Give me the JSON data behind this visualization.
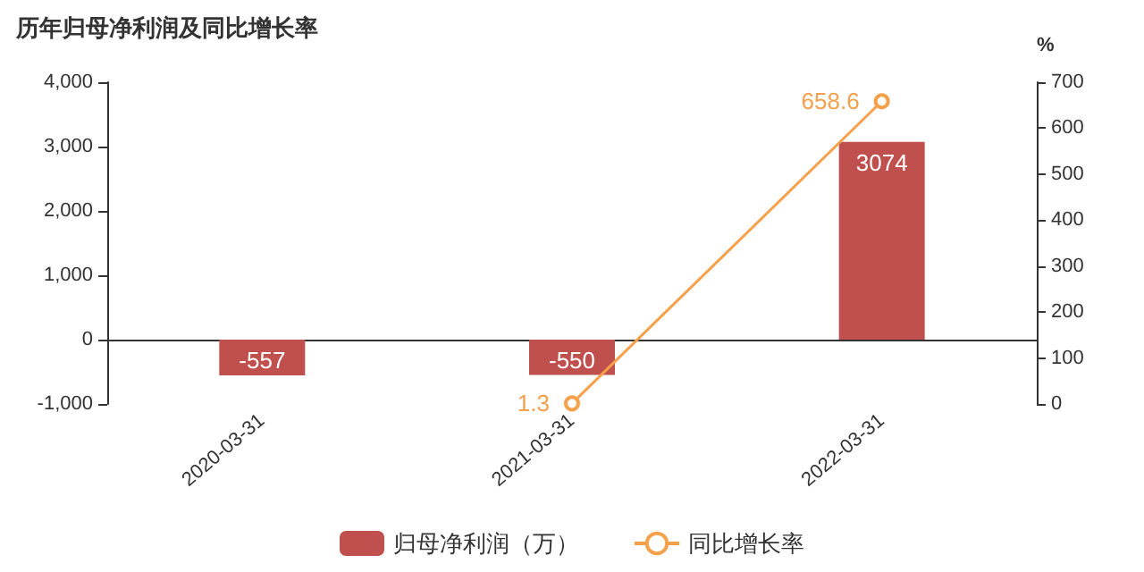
{
  "chart_data": {
    "type": "bar",
    "title": "历年归母净利润及同比增长率",
    "y2label": "%",
    "categories": [
      "2020-03-31",
      "2021-03-31",
      "2022-03-31"
    ],
    "series": [
      {
        "name": "归母净利润（万）",
        "color": "#c0504d",
        "values": [
          -557,
          -550,
          3074
        ]
      },
      {
        "name": "同比增长率",
        "type": "line",
        "axis": "y2",
        "color": "#f5a04a",
        "marker": "circle",
        "values": [
          null,
          1.3,
          658.6
        ]
      }
    ],
    "ylim": [
      -1000,
      4000
    ],
    "yticks": [
      {
        "value": -1000,
        "label": "-1,000"
      },
      0,
      {
        "value": 1000,
        "label": "1,000"
      },
      {
        "value": 2000,
        "label": "2,000"
      },
      {
        "value": 3000,
        "label": "3,000"
      },
      {
        "value": 4000,
        "label": "4,000"
      }
    ],
    "y2lim": [
      0,
      700
    ],
    "y2ticks": [
      0,
      100,
      200,
      300,
      400,
      500,
      600,
      700
    ],
    "data_labels": true,
    "legend": "bottom"
  }
}
